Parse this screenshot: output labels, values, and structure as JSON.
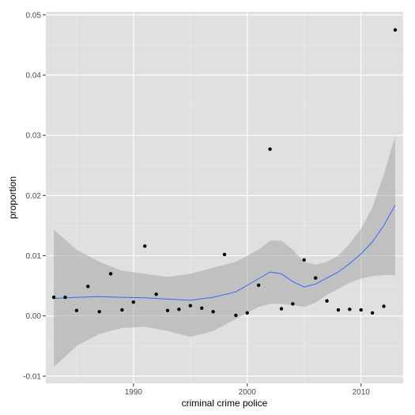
{
  "chart_data": {
    "type": "scatter",
    "xlabel": "criminal crime police",
    "ylabel": "proportion",
    "xlim": [
      1982.3,
      2013.7
    ],
    "ylim": [
      -0.0112,
      0.0505
    ],
    "x_ticks": [
      1990,
      2000,
      2010
    ],
    "x_tick_labels": [
      "1990",
      "2000",
      "2010"
    ],
    "y_ticks": [
      -0.01,
      0.0,
      0.01,
      0.02,
      0.03,
      0.04,
      0.05
    ],
    "y_tick_labels": [
      "-0.01",
      "0.00",
      "0.01",
      "0.02",
      "0.03",
      "0.04",
      "0.05"
    ],
    "grid": true,
    "colors": {
      "panel": "#e0e0e0",
      "grid_major": "#ffffff",
      "grid_minor": "#ebebeb",
      "points": "#000000",
      "smooth_line": "#3366ff",
      "ribbon": "#999999"
    },
    "points": [
      {
        "x": 1983,
        "y": 0.0031
      },
      {
        "x": 1984,
        "y": 0.0031
      },
      {
        "x": 1985,
        "y": 0.0009
      },
      {
        "x": 1986,
        "y": 0.0049
      },
      {
        "x": 1987,
        "y": 0.0007
      },
      {
        "x": 1988,
        "y": 0.007
      },
      {
        "x": 1989,
        "y": 0.001
      },
      {
        "x": 1990,
        "y": 0.0023
      },
      {
        "x": 1991,
        "y": 0.0116
      },
      {
        "x": 1992,
        "y": 0.0036
      },
      {
        "x": 1993,
        "y": 0.0009
      },
      {
        "x": 1994,
        "y": 0.0011
      },
      {
        "x": 1995,
        "y": 0.0017
      },
      {
        "x": 1996,
        "y": 0.0013
      },
      {
        "x": 1997,
        "y": 0.0007
      },
      {
        "x": 1998,
        "y": 0.0102
      },
      {
        "x": 1999,
        "y": 0.0001
      },
      {
        "x": 2000,
        "y": 0.0005
      },
      {
        "x": 2001,
        "y": 0.0051
      },
      {
        "x": 2002,
        "y": 0.0277
      },
      {
        "x": 2003,
        "y": 0.0012
      },
      {
        "x": 2004,
        "y": 0.002
      },
      {
        "x": 2005,
        "y": 0.0093
      },
      {
        "x": 2006,
        "y": 0.0063
      },
      {
        "x": 2007,
        "y": 0.0025
      },
      {
        "x": 2008,
        "y": 0.001
      },
      {
        "x": 2009,
        "y": 0.0011
      },
      {
        "x": 2010,
        "y": 0.001
      },
      {
        "x": 2011,
        "y": 0.0005
      },
      {
        "x": 2012,
        "y": 0.0016
      },
      {
        "x": 2013,
        "y": 0.0475
      }
    ],
    "smooth": {
      "method": "loess",
      "x": [
        1983,
        1985,
        1987,
        1989,
        1991,
        1993,
        1995,
        1997,
        1999,
        2001,
        2002,
        2003,
        2004,
        2005,
        2006,
        2007,
        2008,
        2009,
        2010,
        2011,
        2012,
        2013
      ],
      "y": [
        0.0029,
        0.0031,
        0.0032,
        0.0031,
        0.003,
        0.0028,
        0.0026,
        0.0031,
        0.004,
        0.0062,
        0.0073,
        0.007,
        0.0057,
        0.0048,
        0.0053,
        0.0063,
        0.0073,
        0.0087,
        0.0103,
        0.0123,
        0.015,
        0.0184
      ],
      "ymin": [
        -0.0085,
        -0.005,
        -0.003,
        -0.002,
        -0.0018,
        -0.0025,
        -0.0035,
        -0.0025,
        -0.0005,
        0.0015,
        0.002,
        0.002,
        0.0018,
        0.0015,
        0.0022,
        0.0035,
        0.0045,
        0.0055,
        0.0062,
        0.0066,
        0.0068,
        0.0068
      ],
      "ymax": [
        0.0143,
        0.011,
        0.009,
        0.0075,
        0.007,
        0.0065,
        0.007,
        0.008,
        0.009,
        0.011,
        0.0125,
        0.0125,
        0.011,
        0.009,
        0.0085,
        0.009,
        0.01,
        0.012,
        0.0145,
        0.018,
        0.0235,
        0.0298
      ]
    }
  }
}
